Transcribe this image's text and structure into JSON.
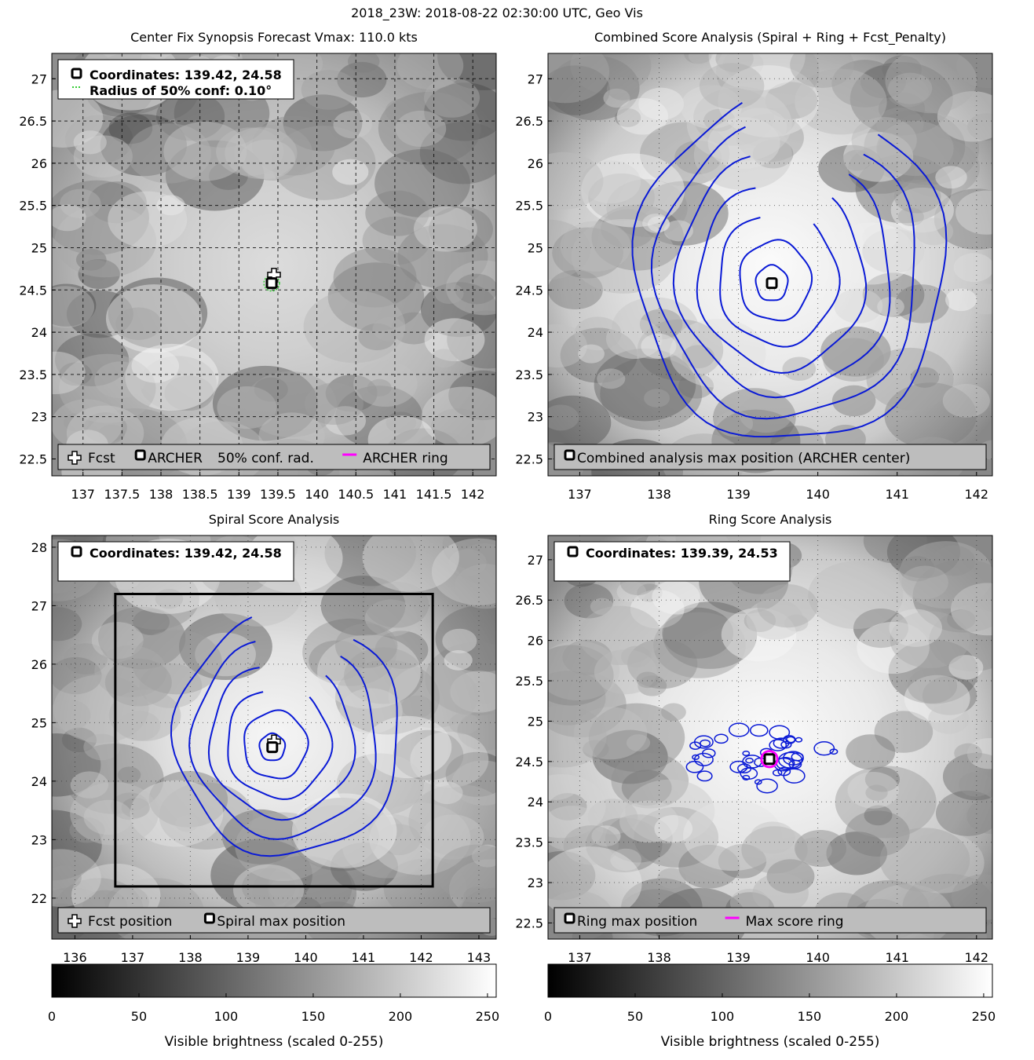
{
  "figure": {
    "suptitle": "2018_23W: 2018-08-22 02:30:00 UTC, Geo Vis",
    "colors": {
      "contour": "#0a1ad6",
      "ring": "#ff00ff",
      "grid": "#000000",
      "conf_radius": "#33cc33"
    }
  },
  "chart_data": [
    {
      "id": "center-fix",
      "type": "image",
      "title": "Center Fix Synopsis     Forecast Vmax: 110.0 kts",
      "xlim": [
        136.6,
        142.3
      ],
      "ylim": [
        22.3,
        27.3
      ],
      "xticks": [
        137,
        137.5,
        138,
        138.5,
        139,
        139.5,
        140,
        140.5,
        141,
        141.5,
        142
      ],
      "xtick_labels": [
        "137",
        "137.5",
        "138",
        "138.5",
        "139",
        "139.5",
        "140",
        "140.5",
        "141",
        "141.5",
        "142"
      ],
      "yticks": [
        22.5,
        23,
        23.5,
        24,
        24.5,
        25,
        25.5,
        26,
        26.5,
        27
      ],
      "ytick_labels": [
        "22.5",
        "23",
        "23.5",
        "24",
        "24.5",
        "25",
        "25.5",
        "26",
        "26.5",
        "27"
      ],
      "grid_lines": true,
      "info_lines": [
        "Coordinates: 139.42, 24.58",
        "Radius of 50% conf: 0.10°"
      ],
      "legend": [
        "Fcst",
        "ARCHER",
        "50% conf. rad.",
        "ARCHER ring"
      ],
      "fcst": {
        "lon": 139.45,
        "lat": 24.68
      },
      "archer": {
        "lon": 139.42,
        "lat": 24.58
      },
      "conf_radius_deg": 0.1
    },
    {
      "id": "combined",
      "type": "contour",
      "title": "Combined Score Analysis (Spiral + Ring + Fcst_Penalty)",
      "xlim": [
        136.6,
        142.2
      ],
      "ylim": [
        22.3,
        27.3
      ],
      "xticks": [
        137,
        138,
        139,
        140,
        141,
        142
      ],
      "xtick_labels": [
        "137",
        "138",
        "139",
        "140",
        "141",
        "142"
      ],
      "yticks": [
        22.5,
        23,
        23.5,
        24,
        24.5,
        25,
        25.5,
        26,
        26.5,
        27
      ],
      "ytick_labels": [
        "22.5",
        "23",
        "23.5",
        "24",
        "24.5",
        "25",
        "25.5",
        "26",
        "26.5",
        "27"
      ],
      "legend": [
        "Combined analysis max position (ARCHER center)"
      ],
      "center": {
        "lon": 139.42,
        "lat": 24.58
      },
      "contour_radii_deg": [
        0.2,
        0.45,
        0.75,
        1.05,
        1.35,
        1.65,
        1.95
      ]
    },
    {
      "id": "spiral",
      "type": "contour",
      "title": "Spiral Score Analysis",
      "xlim": [
        135.6,
        143.3
      ],
      "ylim": [
        21.3,
        28.2
      ],
      "xticks": [
        136,
        137,
        138,
        139,
        140,
        141,
        142,
        143
      ],
      "xtick_labels": [
        "136",
        "137",
        "138",
        "139",
        "140",
        "141",
        "142",
        "143"
      ],
      "yticks": [
        22,
        23,
        24,
        25,
        26,
        27,
        28
      ],
      "ytick_labels": [
        "22",
        "23",
        "24",
        "25",
        "26",
        "27",
        "28"
      ],
      "info_lines": [
        "Coordinates: 139.42, 24.58"
      ],
      "legend": [
        "Fcst position",
        "Spiral max position"
      ],
      "box": {
        "lon": [
          136.7,
          142.2
        ],
        "lat": [
          22.2,
          27.2
        ]
      },
      "center": {
        "lon": 139.42,
        "lat": 24.58
      },
      "fcst": {
        "lon": 139.45,
        "lat": 24.68
      },
      "contour_radii_deg": [
        0.22,
        0.55,
        0.9,
        1.25,
        1.6,
        1.95
      ]
    },
    {
      "id": "ring",
      "type": "contour",
      "title": "Ring Score Analysis",
      "xlim": [
        136.6,
        142.2
      ],
      "ylim": [
        22.3,
        27.3
      ],
      "xticks": [
        137,
        138,
        139,
        140,
        141,
        142
      ],
      "xtick_labels": [
        "137",
        "138",
        "139",
        "140",
        "141",
        "142"
      ],
      "yticks": [
        22.5,
        23,
        23.5,
        24,
        24.5,
        25,
        25.5,
        26,
        26.5,
        27
      ],
      "ytick_labels": [
        "22.5",
        "23",
        "23.5",
        "24",
        "24.5",
        "25",
        "25.5",
        "26",
        "26.5",
        "27"
      ],
      "info_lines": [
        "Coordinates: 139.39, 24.53"
      ],
      "legend": [
        "Ring max position",
        "Max score ring"
      ],
      "center": {
        "lon": 139.39,
        "lat": 24.53
      },
      "ring_radius_deg": 0.1
    }
  ],
  "colorbars": [
    {
      "id": "cb-left",
      "ticks": [
        0,
        50,
        100,
        150,
        200,
        250
      ],
      "tick_labels": [
        "0",
        "50",
        "100",
        "150",
        "200",
        "250"
      ],
      "range": [
        0,
        255
      ],
      "label": "Visible brightness (scaled 0-255)"
    },
    {
      "id": "cb-right",
      "ticks": [
        0,
        50,
        100,
        150,
        200,
        250
      ],
      "tick_labels": [
        "0",
        "50",
        "100",
        "150",
        "200",
        "250"
      ],
      "range": [
        0,
        255
      ],
      "label": "Visible brightness (scaled 0-255)"
    }
  ]
}
